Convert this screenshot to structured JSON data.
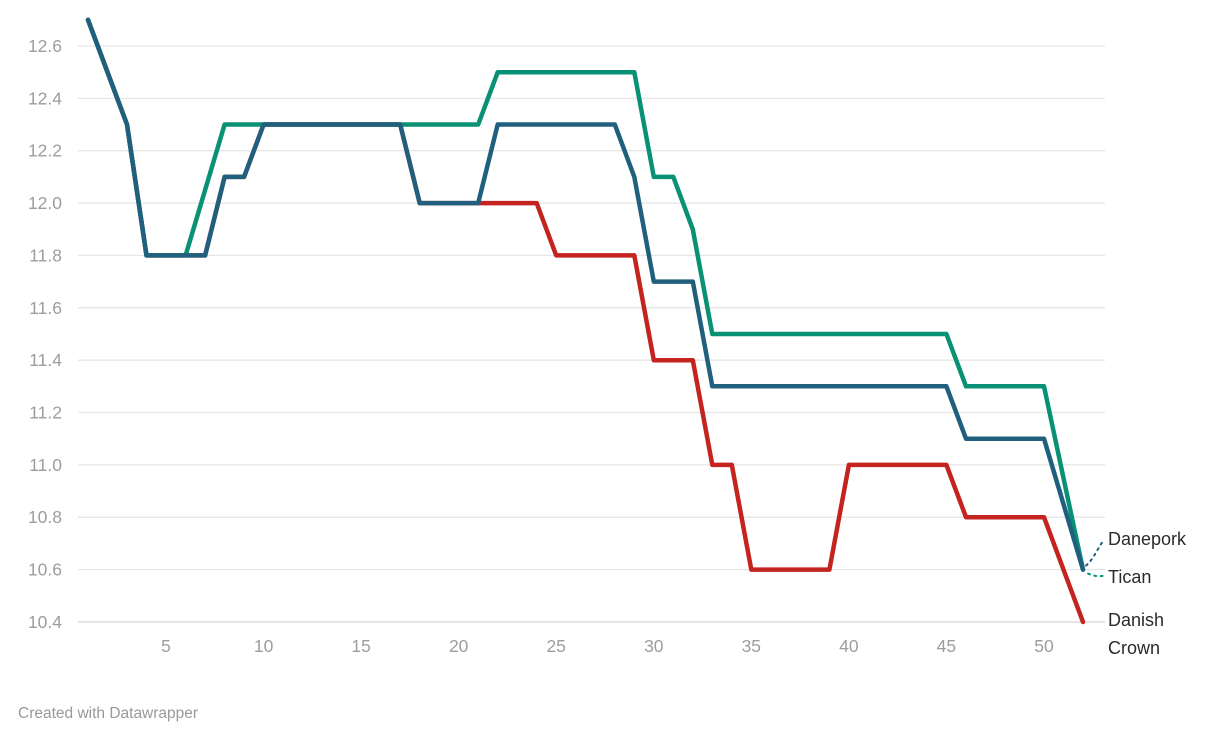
{
  "footer": {
    "credit": "Created with Datawrapper"
  },
  "axes": {
    "x_tick_labels": [
      "5",
      "10",
      "15",
      "20",
      "25",
      "30",
      "35",
      "40",
      "45",
      "50"
    ],
    "y_tick_labels": [
      "12.6",
      "12.4",
      "12.2",
      "12.0",
      "11.8",
      "11.6",
      "11.4",
      "11.2",
      "11.0",
      "10.8",
      "10.6",
      "10.4"
    ]
  },
  "colors": {
    "grid": "#e6e6e6",
    "baseline": "#d5d5d5",
    "tick_text": "#9d9d9d",
    "label_text": "#2b2b2b",
    "danish_crown_red": "#c42320",
    "tican_green": "#089174",
    "danepork_blue": "#20607e"
  },
  "chart_data": {
    "type": "line",
    "title": "",
    "xlabel": "",
    "ylabel": "",
    "x_unit": "week",
    "x": [
      1,
      2,
      3,
      4,
      5,
      6,
      7,
      8,
      9,
      10,
      11,
      12,
      13,
      14,
      15,
      16,
      17,
      18,
      19,
      20,
      21,
      22,
      23,
      24,
      25,
      26,
      27,
      28,
      29,
      30,
      31,
      32,
      33,
      34,
      35,
      36,
      37,
      38,
      39,
      40,
      41,
      42,
      43,
      44,
      45,
      46,
      47,
      48,
      49,
      50,
      51,
      52
    ],
    "xlim": [
      1,
      52
    ],
    "ylim": [
      10.4,
      12.7
    ],
    "x_ticks": [
      5,
      10,
      15,
      20,
      25,
      30,
      35,
      40,
      45,
      50
    ],
    "y_ticks": [
      12.6,
      12.4,
      12.2,
      12.0,
      11.8,
      11.6,
      11.4,
      11.2,
      11.0,
      10.8,
      10.6,
      10.4
    ],
    "grid": "horizontal",
    "legend_position": "direct-labels-right",
    "series": [
      {
        "name": "Danish Crown",
        "color": "#c42320",
        "values": [
          12.7,
          12.5,
          12.3,
          11.8,
          11.8,
          11.8,
          11.8,
          12.1,
          12.1,
          12.3,
          12.3,
          12.3,
          12.3,
          12.3,
          12.3,
          12.3,
          12.3,
          12.0,
          12.0,
          12.0,
          12.0,
          12.0,
          12.0,
          12.0,
          11.8,
          11.8,
          11.8,
          11.8,
          11.8,
          11.4,
          11.4,
          11.4,
          11.0,
          11.0,
          10.6,
          10.6,
          10.6,
          10.6,
          10.6,
          11.0,
          11.0,
          11.0,
          11.0,
          11.0,
          11.0,
          10.8,
          10.8,
          10.8,
          10.8,
          10.8,
          10.6,
          10.4
        ]
      },
      {
        "name": "Tican",
        "color": "#089174",
        "values": [
          12.7,
          12.5,
          12.3,
          11.8,
          11.8,
          11.8,
          12.05,
          12.3,
          12.3,
          12.3,
          12.3,
          12.3,
          12.3,
          12.3,
          12.3,
          12.3,
          12.3,
          12.3,
          12.3,
          12.3,
          12.3,
          12.5,
          12.5,
          12.5,
          12.5,
          12.5,
          12.5,
          12.5,
          12.5,
          12.1,
          12.1,
          11.9,
          11.5,
          11.5,
          11.5,
          11.5,
          11.5,
          11.5,
          11.5,
          11.5,
          11.5,
          11.5,
          11.5,
          11.5,
          11.5,
          11.3,
          11.3,
          11.3,
          11.3,
          11.3,
          10.95,
          10.6
        ]
      },
      {
        "name": "Danepork",
        "color": "#20607e",
        "values": [
          12.7,
          12.5,
          12.3,
          11.8,
          11.8,
          11.8,
          11.8,
          12.1,
          12.1,
          12.3,
          12.3,
          12.3,
          12.3,
          12.3,
          12.3,
          12.3,
          12.3,
          12.0,
          12.0,
          12.0,
          12.0,
          12.3,
          12.3,
          12.3,
          12.3,
          12.3,
          12.3,
          12.3,
          12.1,
          11.7,
          11.7,
          11.7,
          11.3,
          11.3,
          11.3,
          11.3,
          11.3,
          11.3,
          11.3,
          11.3,
          11.3,
          11.3,
          11.3,
          11.3,
          11.3,
          11.1,
          11.1,
          11.1,
          11.1,
          11.1,
          10.85,
          10.6
        ]
      }
    ]
  }
}
